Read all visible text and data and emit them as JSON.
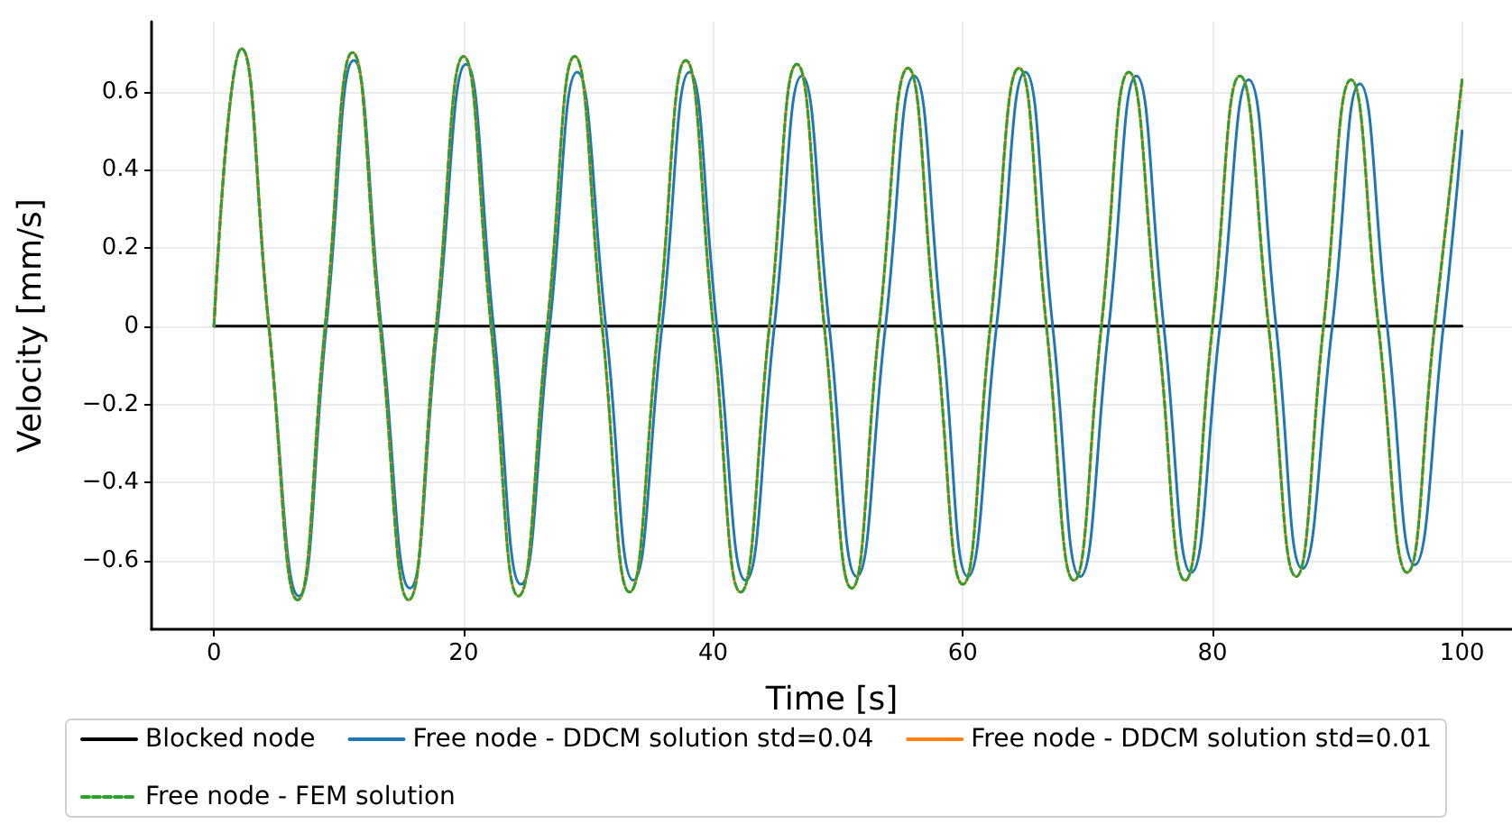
{
  "chart_data": {
    "type": "line",
    "xlabel": "Time [s]",
    "ylabel": "Velocity [mm/s]",
    "xlim": [
      -5,
      104
    ],
    "xticks": [
      0,
      20,
      40,
      60,
      80,
      100
    ],
    "ylim": [
      -0.775,
      0.779
    ],
    "yticks": [
      {
        "value": -0.6,
        "label": "−0.6"
      },
      {
        "value": -0.4,
        "label": "−0.4"
      },
      {
        "value": -0.2,
        "label": "−0.2"
      },
      0.0,
      0.2,
      0.4,
      0.6
    ],
    "grid": true,
    "legend": "bottom",
    "marker": "none",
    "series": [
      {
        "name": "Blocked node",
        "color": "#000000",
        "line_style": "solid",
        "x": [
          0,
          100
        ],
        "values": [
          0,
          0
        ]
      },
      {
        "name": "Free node - DDCM solution std=0.04",
        "color": "#1f77b4",
        "line_style": "solid",
        "x": [
          0.0,
          2.2,
          4.4,
          6.8,
          9.0,
          11.2,
          13.4,
          15.7,
          17.9,
          20.2,
          22.4,
          24.6,
          26.9,
          29.1,
          31.4,
          33.6,
          35.9,
          38.1,
          40.3,
          42.6,
          44.9,
          47.1,
          49.3,
          51.5,
          53.8,
          56.1,
          58.3,
          60.4,
          62.7,
          65.0,
          67.2,
          69.4,
          71.7,
          73.9,
          76.1,
          78.3,
          80.6,
          82.9,
          85.1,
          87.2,
          89.6,
          91.8,
          94.0,
          96.2,
          98.5,
          100.0
        ],
        "values": [
          0,
          0.71,
          0,
          -0.69,
          0,
          0.68,
          0,
          -0.67,
          0,
          0.67,
          0,
          -0.66,
          0,
          0.65,
          0,
          -0.65,
          0,
          0.65,
          0,
          -0.65,
          0,
          0.64,
          0,
          -0.64,
          0,
          0.64,
          0,
          -0.64,
          0,
          0.65,
          0,
          -0.64,
          0,
          0.64,
          0,
          -0.63,
          0,
          0.63,
          0,
          -0.62,
          0,
          0.62,
          0,
          -0.61,
          0,
          0.5
        ]
      },
      {
        "name": "Free node - DDCM solution std=0.01",
        "color": "#ff7f0e",
        "line_style": "solid",
        "x": [
          0.0,
          2.2,
          4.4,
          6.7,
          8.9,
          11.1,
          13.3,
          15.6,
          17.8,
          20.0,
          22.2,
          24.4,
          26.7,
          28.9,
          31.1,
          33.3,
          35.6,
          37.8,
          40.0,
          42.2,
          44.5,
          46.7,
          48.9,
          51.1,
          53.3,
          55.6,
          57.8,
          60.0,
          62.2,
          64.5,
          66.7,
          68.9,
          71.1,
          73.3,
          75.6,
          77.8,
          80.0,
          82.2,
          84.5,
          86.7,
          88.9,
          91.1,
          93.3,
          95.6,
          97.8,
          100.0
        ],
        "values": [
          0,
          0.71,
          0,
          -0.7,
          0,
          0.7,
          0,
          -0.7,
          0,
          0.69,
          0,
          -0.69,
          0,
          0.69,
          0,
          -0.68,
          0,
          0.68,
          0,
          -0.68,
          0,
          0.67,
          0,
          -0.67,
          0,
          0.66,
          0,
          -0.66,
          0,
          0.66,
          0,
          -0.65,
          0,
          0.65,
          0,
          -0.65,
          0,
          0.64,
          0,
          -0.64,
          0,
          0.63,
          0,
          -0.63,
          0,
          0.63
        ]
      },
      {
        "name": "Free node - FEM solution",
        "color": "#2ca02c",
        "line_style": "dashed",
        "x": [
          0.0,
          2.2,
          4.4,
          6.7,
          8.9,
          11.1,
          13.3,
          15.6,
          17.8,
          20.0,
          22.2,
          24.4,
          26.7,
          28.9,
          31.1,
          33.3,
          35.6,
          37.8,
          40.0,
          42.2,
          44.5,
          46.7,
          48.9,
          51.1,
          53.3,
          55.6,
          57.8,
          60.0,
          62.2,
          64.5,
          66.7,
          68.9,
          71.1,
          73.3,
          75.6,
          77.8,
          80.0,
          82.2,
          84.5,
          86.7,
          88.9,
          91.1,
          93.3,
          95.6,
          97.8,
          100.0
        ],
        "values": [
          0,
          0.71,
          0,
          -0.7,
          0,
          0.7,
          0,
          -0.7,
          0,
          0.69,
          0,
          -0.69,
          0,
          0.69,
          0,
          -0.68,
          0,
          0.68,
          0,
          -0.68,
          0,
          0.67,
          0,
          -0.67,
          0,
          0.66,
          0,
          -0.66,
          0,
          0.66,
          0,
          -0.65,
          0,
          0.65,
          0,
          -0.65,
          0,
          0.64,
          0,
          -0.64,
          0,
          0.63,
          0,
          -0.63,
          0,
          0.63
        ]
      }
    ]
  }
}
